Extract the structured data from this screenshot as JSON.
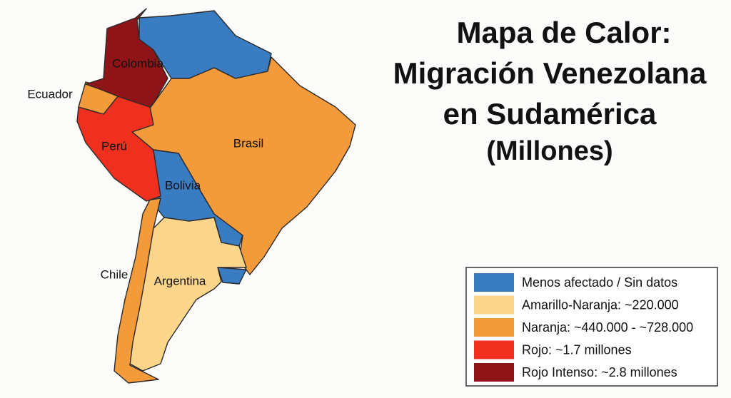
{
  "title": {
    "lines": [
      "Mapa de Calor:",
      "Migración Venezolana",
      "en Sudamérica",
      "(Millones)"
    ]
  },
  "countries": [
    "Colombia",
    "Ecuador",
    "Perú",
    "Brasil",
    "Bolivia",
    "Chile",
    "Argentina"
  ],
  "legend": [
    {
      "label": "Menos afectado / Sin datos",
      "color": "#3a7cc2"
    },
    {
      "label": "Amarillo-Naranja: ~220.000",
      "color": "#fbd68a"
    },
    {
      "label": "Naranja: ~440.000 - ~728.000",
      "color": "#f39a3b"
    },
    {
      "label": "Rojo: ~1.7 millones",
      "color": "#f0301e"
    },
    {
      "label": "Rojo Intenso: ~2.8 millones",
      "color": "#8e1418"
    }
  ]
}
